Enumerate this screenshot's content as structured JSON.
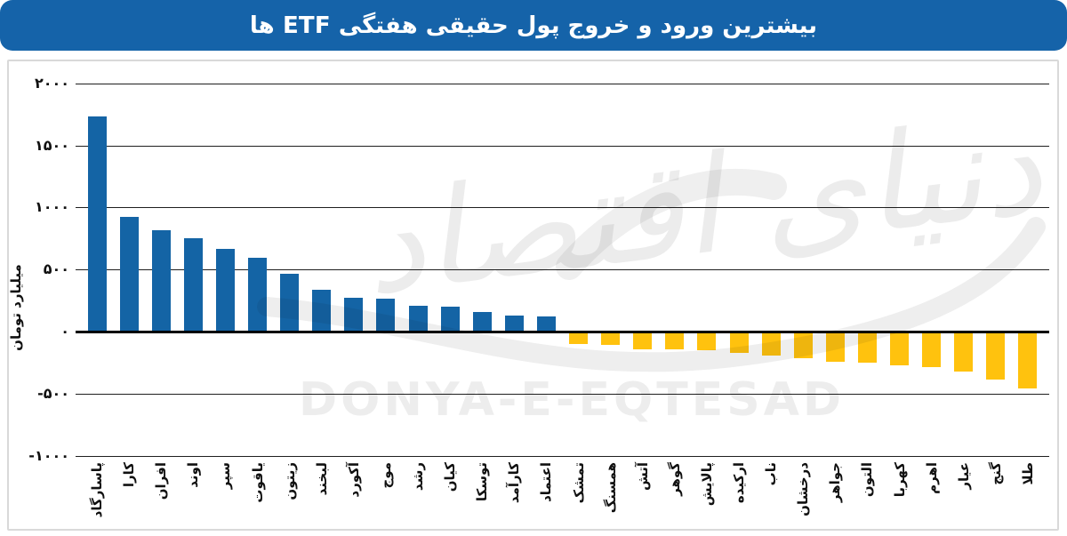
{
  "header": {
    "title": "بیشترین ورود و خروج پول حقیقی هفتگی ETF ها",
    "bg_color": "#1563A9",
    "text_color": "#ffffff"
  },
  "watermark": {
    "latin": "DONYA-E-EQTESAD",
    "persian": "دنیای اقتصاد"
  },
  "chart_data": {
    "type": "bar",
    "title": "بیشترین ورود و خروج پول حقیقی هفتگی ETF ها",
    "xlabel": "",
    "ylabel": "میلیارد تومان",
    "ylim": [
      -1000,
      2000
    ],
    "grid": "horizontal",
    "legend": "none",
    "positive_color": "#1464A5",
    "negative_color": "#FFC20E",
    "categories": [
      "پاسارگاد",
      "کارا",
      "افران",
      "اوند",
      "سپر",
      "یاقوت",
      "زیتون",
      "لبخند",
      "آکورد",
      "موج",
      "رشد",
      "کیان",
      "توسکا",
      "کارآمد",
      "اعتماد",
      "تمشک",
      "همسنگ",
      "آتش",
      "گوهر",
      "پالایش",
      "ارکیده",
      "ناب",
      "درخشان",
      "جواهر",
      "التون",
      "کهربا",
      "اهرم",
      "عیار",
      "گنج",
      "طلا"
    ],
    "values": [
      1730,
      925,
      815,
      755,
      665,
      595,
      465,
      335,
      275,
      265,
      210,
      200,
      155,
      130,
      120,
      -100,
      -105,
      -140,
      -145,
      -150,
      -175,
      -190,
      -215,
      -240,
      -250,
      -270,
      -290,
      -325,
      -390,
      -455
    ],
    "yticks": {
      "values": [
        2000,
        1500,
        1000,
        500,
        0,
        -500,
        -1000
      ],
      "labels": [
        "۲۰۰۰",
        "۱۵۰۰",
        "۱۰۰۰",
        "۵۰۰",
        "۰",
        "-۵۰۰",
        "-۱۰۰۰"
      ]
    }
  }
}
